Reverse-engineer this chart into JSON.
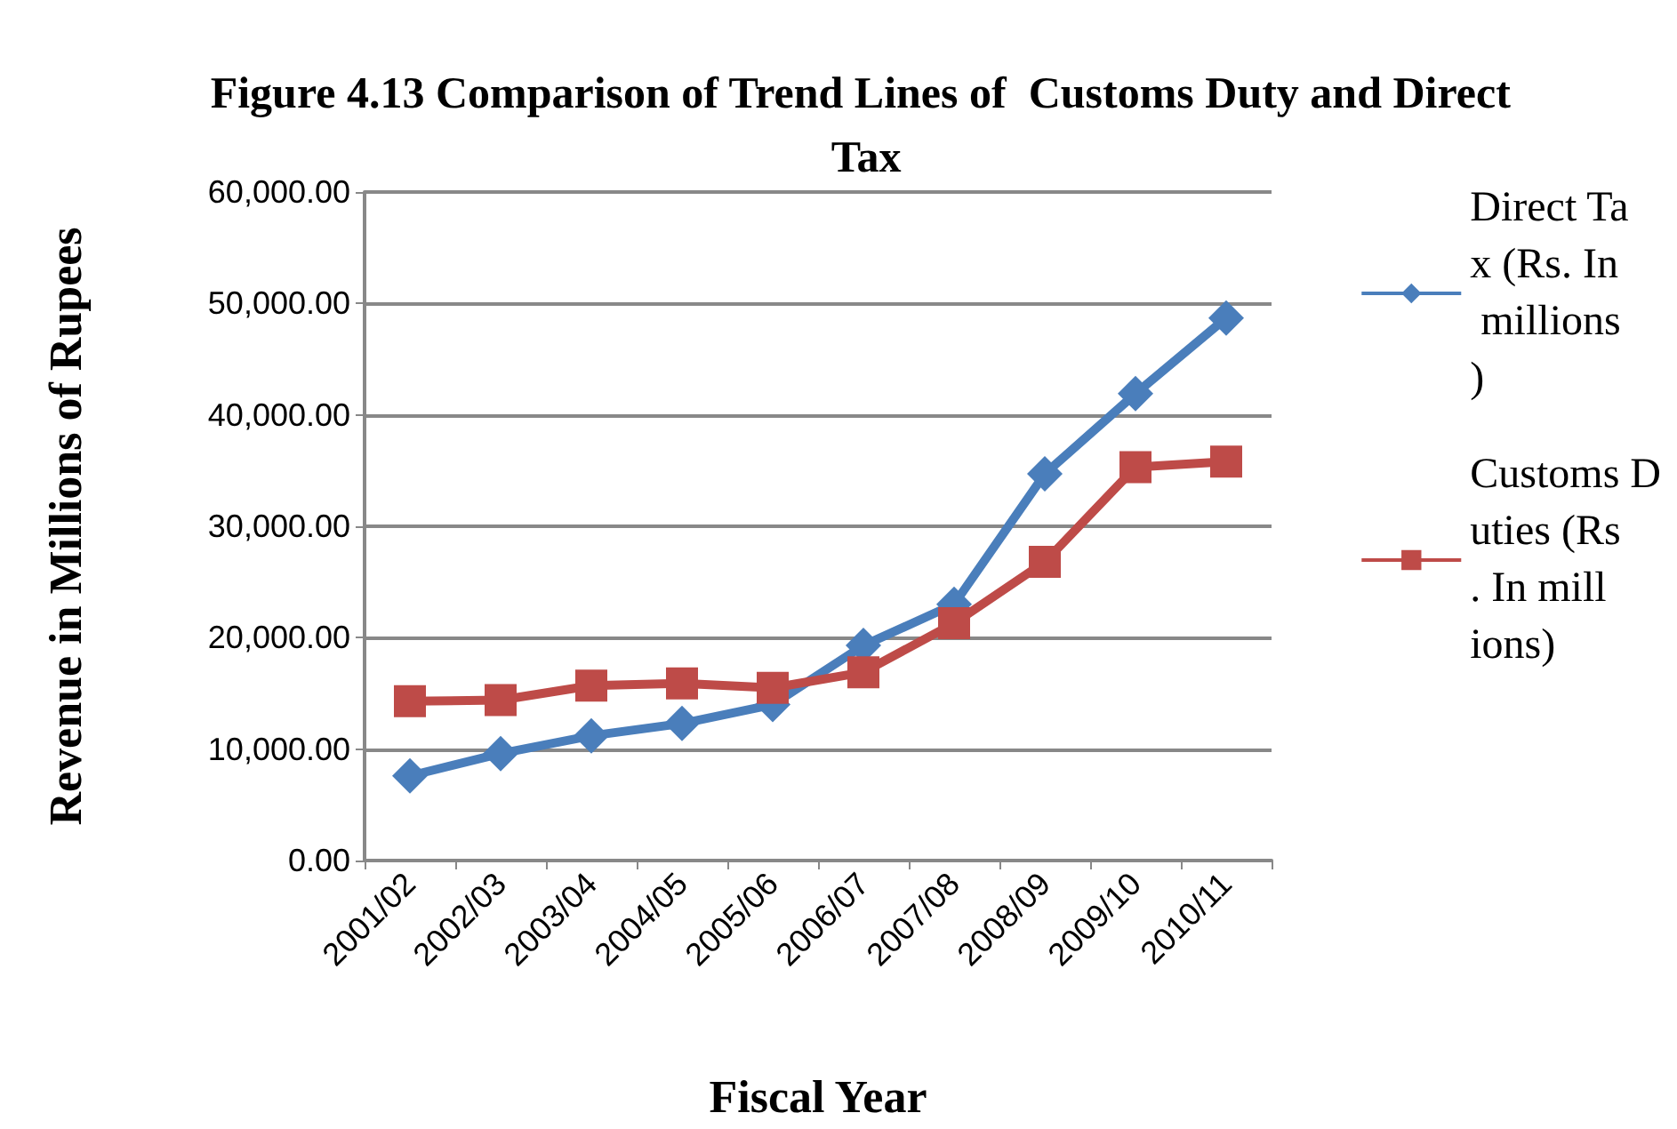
{
  "chart_data": {
    "type": "line",
    "title": "Figure 4.13 Comparison of Trend Lines of  Customs Duty and Direct Tax",
    "xlabel": "Fiscal Year",
    "ylabel": "Revenue in Millions of Rupees",
    "categories": [
      "2001/02",
      "2002/03",
      "2003/04",
      "2004/05",
      "2005/06",
      "2006/07",
      "2007/08",
      "2008/09",
      "2009/10",
      "2010/11"
    ],
    "series": [
      {
        "name": "Direct Tax (Rs. In millions)",
        "color": "#4a7ebb",
        "marker": "diamond",
        "values": [
          7600,
          9600,
          11200,
          12300,
          14000,
          19300,
          23000,
          34700,
          41900,
          48700
        ]
      },
      {
        "name": "Customs Duties (Rs. In millions)",
        "color": "#be4b48",
        "marker": "square",
        "values": [
          14300,
          14400,
          15700,
          15900,
          15500,
          16900,
          21300,
          26800,
          35300,
          35800
        ]
      }
    ],
    "ylim": [
      0,
      60000
    ],
    "yticks": [
      {
        "value": 0,
        "label": "0.00"
      },
      {
        "value": 10000,
        "label": "10,000.00"
      },
      {
        "value": 20000,
        "label": "20,000.00"
      },
      {
        "value": 30000,
        "label": "30,000.00"
      },
      {
        "value": 40000,
        "label": "40,000.00"
      },
      {
        "value": 50000,
        "label": "50,000.00"
      },
      {
        "value": 60000,
        "label": "60,000.00"
      }
    ],
    "grid": "y",
    "legend": "right",
    "line_style": "solid"
  }
}
